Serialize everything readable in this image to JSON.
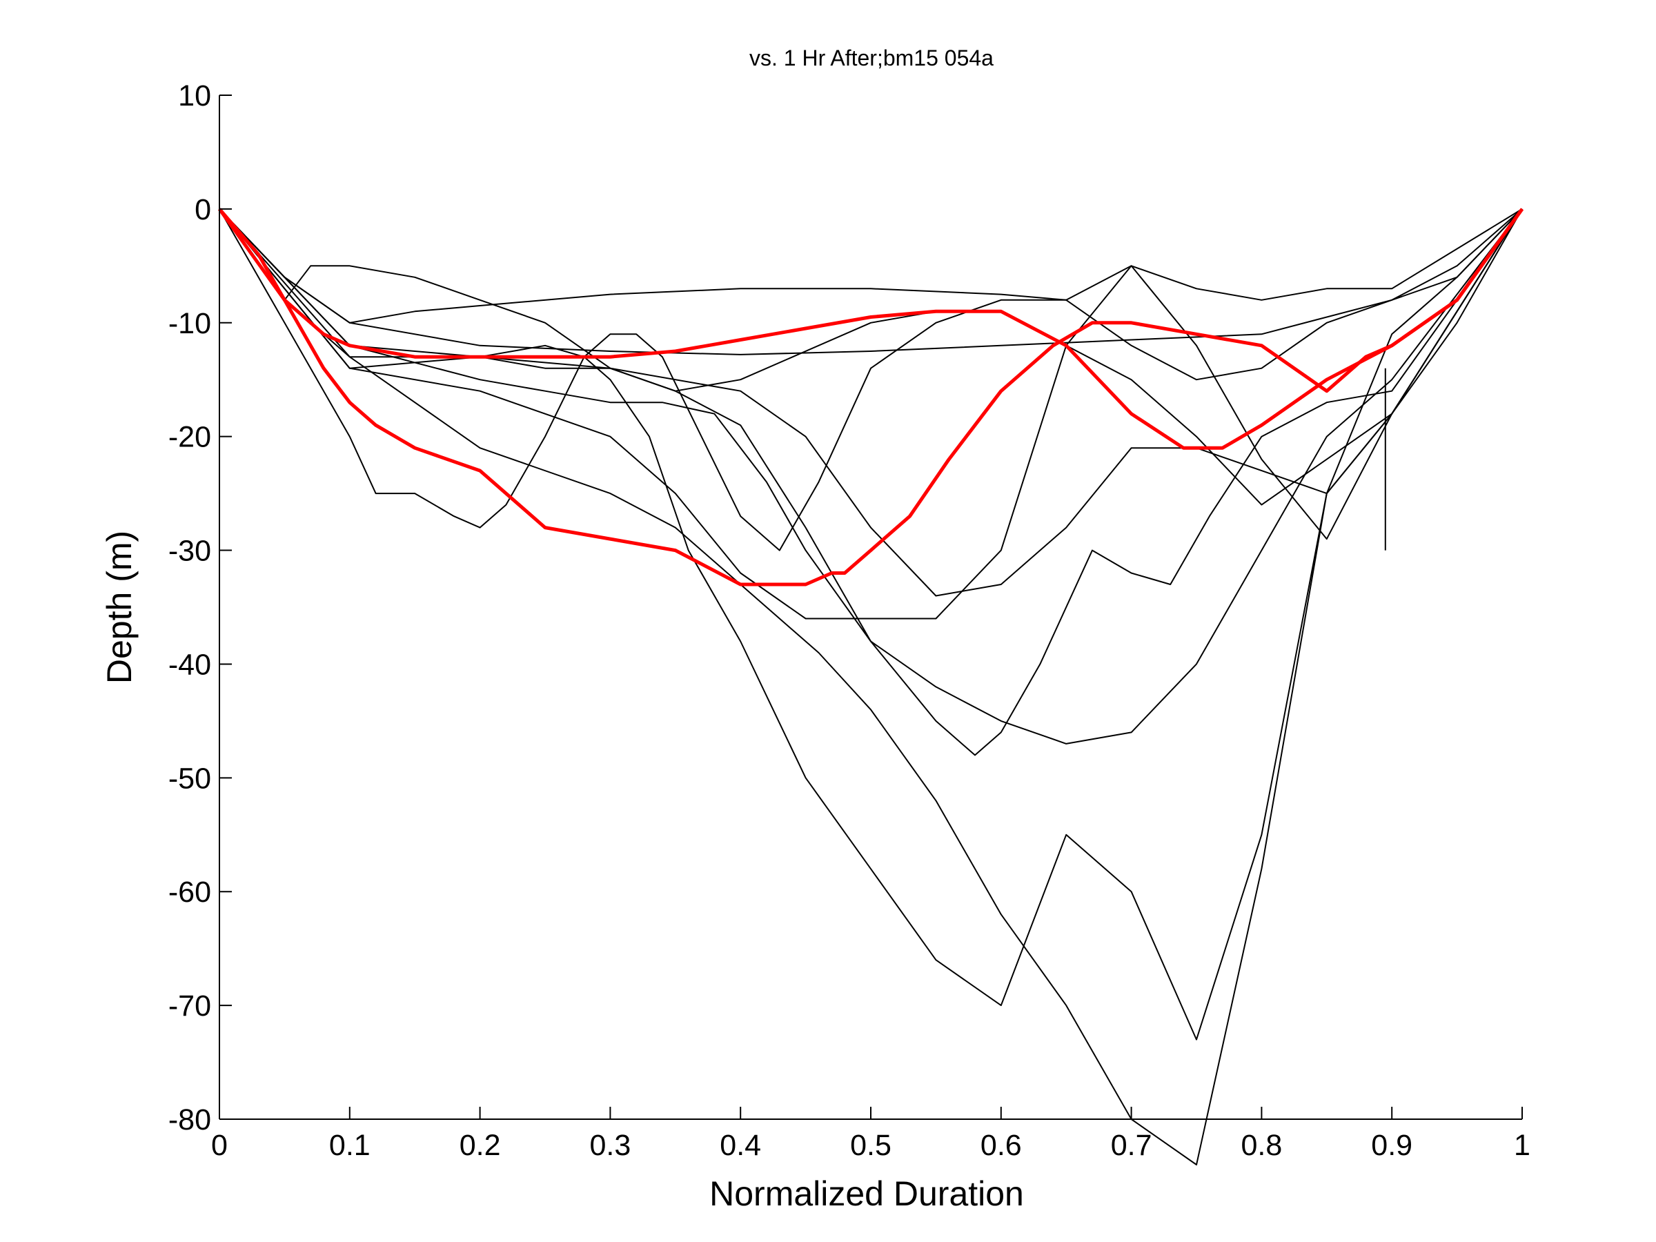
{
  "chart_data": {
    "type": "line",
    "title": "vs. 1 Hr After;bm15 054a",
    "xlabel": "Normalized Duration",
    "ylabel": "Depth (m)",
    "xlim": [
      0,
      1
    ],
    "ylim": [
      -80,
      10
    ],
    "xticks": [
      0,
      0.1,
      0.2,
      0.3,
      0.4,
      0.5,
      0.6,
      0.7,
      0.8,
      0.9,
      1
    ],
    "xtick_labels": [
      "0",
      "0.1",
      "0.2",
      "0.3",
      "0.4",
      "0.5",
      "0.6",
      "0.7",
      "0.8",
      "0.9",
      "1"
    ],
    "yticks": [
      10,
      0,
      -10,
      -20,
      -30,
      -40,
      -50,
      -60,
      -70,
      -80
    ],
    "ytick_labels": [
      "10",
      "0",
      "-10",
      "-20",
      "-30",
      "-40",
      "-50",
      "-60",
      "-70",
      "-80"
    ],
    "grid": false,
    "colors": {
      "highlight": "#ff0000",
      "other": "#000000"
    },
    "series": [
      {
        "color": "#000000",
        "emphasis": false,
        "x": [
          0,
          0.05,
          0.1,
          0.2,
          0.3,
          0.4,
          0.5,
          0.6,
          0.7,
          0.8,
          0.9,
          0.95,
          1
        ],
        "y": [
          0,
          -6,
          -10,
          -12,
          -12.5,
          -12.8,
          -12.5,
          -12,
          -11.5,
          -11,
          -8,
          -5,
          0
        ]
      },
      {
        "color": "#000000",
        "emphasis": false,
        "x": [
          0,
          0.05,
          0.1,
          0.15,
          0.2,
          0.3,
          0.4,
          0.5,
          0.6,
          0.65,
          0.7,
          0.75,
          0.8,
          0.85,
          0.9,
          1
        ],
        "y": [
          0,
          -6,
          -10,
          -9,
          -8.5,
          -7.5,
          -7,
          -7,
          -7.5,
          -8,
          -5,
          -7,
          -8,
          -7,
          -7,
          0
        ]
      },
      {
        "color": "#000000",
        "emphasis": false,
        "x": [
          0,
          0.05,
          0.07,
          0.1,
          0.15,
          0.2,
          0.25,
          0.3,
          0.35,
          0.4,
          0.5,
          0.55,
          0.6,
          0.65,
          0.7,
          0.75,
          0.8,
          0.9,
          1
        ],
        "y": [
          0,
          -8,
          -5,
          -5,
          -6,
          -8,
          -10,
          -14,
          -16,
          -15,
          -10,
          -9,
          -9,
          -12,
          -15,
          -20,
          -26,
          -18,
          0
        ]
      },
      {
        "color": "#000000",
        "emphasis": false,
        "x": [
          0,
          0.05,
          0.1,
          0.12,
          0.15,
          0.18,
          0.2,
          0.22,
          0.25,
          0.28,
          0.3,
          0.32,
          0.34,
          0.37,
          0.4,
          0.43,
          0.46,
          0.5,
          0.55,
          0.6,
          0.65,
          0.7,
          0.75,
          0.8,
          0.85,
          0.9,
          0.95,
          1
        ],
        "y": [
          0,
          -10,
          -20,
          -25,
          -25,
          -27,
          -28,
          -26,
          -20,
          -13,
          -11,
          -11,
          -13,
          -20,
          -27,
          -30,
          -24,
          -14,
          -10,
          -8,
          -8,
          -12,
          -15,
          -14,
          -10,
          -8,
          -6,
          0
        ]
      },
      {
        "color": "#000000",
        "emphasis": false,
        "x": [
          0,
          0.1,
          0.2,
          0.3,
          0.35,
          0.4,
          0.44,
          0.46,
          0.5,
          0.55,
          0.6,
          0.65,
          0.7,
          0.75,
          0.8,
          0.85,
          0.9,
          0.95,
          1
        ],
        "y": [
          0,
          -13,
          -21,
          -25,
          -28,
          -33,
          -37,
          -39,
          -44,
          -52,
          -62,
          -70,
          -80,
          -84,
          -58,
          -25,
          -11,
          -6,
          0
        ]
      },
      {
        "color": "#000000",
        "emphasis": false,
        "x": [
          0,
          0.05,
          0.1,
          0.15,
          0.2,
          0.25,
          0.28,
          0.3,
          0.33,
          0.36,
          0.4,
          0.45,
          0.5,
          0.55,
          0.6,
          0.65,
          0.7,
          0.75,
          0.8,
          0.85,
          0.9,
          0.95,
          1
        ],
        "y": [
          0,
          -8,
          -13,
          -13,
          -13,
          -12,
          -13,
          -15,
          -20,
          -30,
          -38,
          -50,
          -58,
          -66,
          -70,
          -55,
          -60,
          -73,
          -55,
          -25,
          -18,
          -10,
          0
        ]
      },
      {
        "color": "#000000",
        "emphasis": false,
        "x": [
          0,
          0.1,
          0.2,
          0.25,
          0.3,
          0.34,
          0.38,
          0.42,
          0.45,
          0.5,
          0.55,
          0.58,
          0.6,
          0.63,
          0.67,
          0.7,
          0.73,
          0.76,
          0.8,
          0.85,
          0.9,
          1
        ],
        "y": [
          0,
          -12,
          -15,
          -16,
          -17,
          -17,
          -18,
          -24,
          -30,
          -38,
          -45,
          -48,
          -46,
          -40,
          -30,
          -32,
          -33,
          -27,
          -20,
          -17,
          -16,
          0
        ]
      },
      {
        "color": "#000000",
        "emphasis": false,
        "x": [
          0,
          0.1,
          0.2,
          0.3,
          0.4,
          0.45,
          0.5,
          0.55,
          0.6,
          0.65,
          0.7,
          0.75,
          0.8,
          0.85,
          0.9,
          1
        ],
        "y": [
          0,
          -12,
          -13,
          -14,
          -16,
          -20,
          -28,
          -34,
          -33,
          -28,
          -21,
          -21,
          -23,
          -25,
          -18,
          0
        ]
      },
      {
        "color": "#000000",
        "emphasis": false,
        "x": [
          0,
          0.1,
          0.2,
          0.3,
          0.35,
          0.4,
          0.45,
          0.5,
          0.55,
          0.6,
          0.65,
          0.7,
          0.75,
          0.8,
          0.85,
          0.9,
          1
        ],
        "y": [
          0,
          -14,
          -16,
          -20,
          -25,
          -32,
          -36,
          -36,
          -36,
          -30,
          -12,
          -5,
          -12,
          -22,
          -29,
          -18,
          0
        ]
      },
      {
        "color": "#000000",
        "emphasis": false,
        "x": [
          0,
          0.1,
          0.2,
          0.25,
          0.3,
          0.35,
          0.4,
          0.45,
          0.5,
          0.55,
          0.6,
          0.65,
          0.7,
          0.75,
          0.8,
          0.85,
          0.9,
          1
        ],
        "y": [
          0,
          -14,
          -13,
          -14,
          -14,
          -16,
          -19,
          -28,
          -38,
          -42,
          -45,
          -47,
          -46,
          -40,
          -30,
          -20,
          -15,
          0
        ]
      },
      {
        "color": "#000000",
        "emphasis": false,
        "x": [
          0.895,
          0.895
        ],
        "y": [
          -14,
          -30
        ]
      },
      {
        "color": "#ff0000",
        "emphasis": true,
        "x": [
          0,
          0.03,
          0.05,
          0.08,
          0.1,
          0.12,
          0.15,
          0.2,
          0.25,
          0.3,
          0.35,
          0.4,
          0.45,
          0.47,
          0.48,
          0.5,
          0.53,
          0.56,
          0.6,
          0.64,
          0.67,
          0.7,
          0.75,
          0.8,
          0.85,
          0.88,
          0.9,
          0.95,
          1
        ],
        "y": [
          0,
          -4,
          -8,
          -14,
          -17,
          -19,
          -21,
          -23,
          -28,
          -29,
          -30,
          -33,
          -33,
          -32,
          -32,
          -30,
          -27,
          -22,
          -16,
          -12,
          -10,
          -10,
          -11,
          -12,
          -16,
          -13,
          -12,
          -8,
          0
        ]
      },
      {
        "color": "#ff0000",
        "emphasis": true,
        "x": [
          0,
          0.05,
          0.08,
          0.1,
          0.15,
          0.2,
          0.25,
          0.3,
          0.35,
          0.4,
          0.45,
          0.5,
          0.55,
          0.6,
          0.65,
          0.7,
          0.74,
          0.77,
          0.8,
          0.85,
          0.9,
          0.95,
          1
        ],
        "y": [
          0,
          -8,
          -11,
          -12,
          -13,
          -13,
          -13,
          -13,
          -12.5,
          -11.5,
          -10.5,
          -9.5,
          -9,
          -9,
          -12,
          -18,
          -21,
          -21,
          -19,
          -15,
          -12,
          -8,
          0
        ]
      }
    ]
  }
}
